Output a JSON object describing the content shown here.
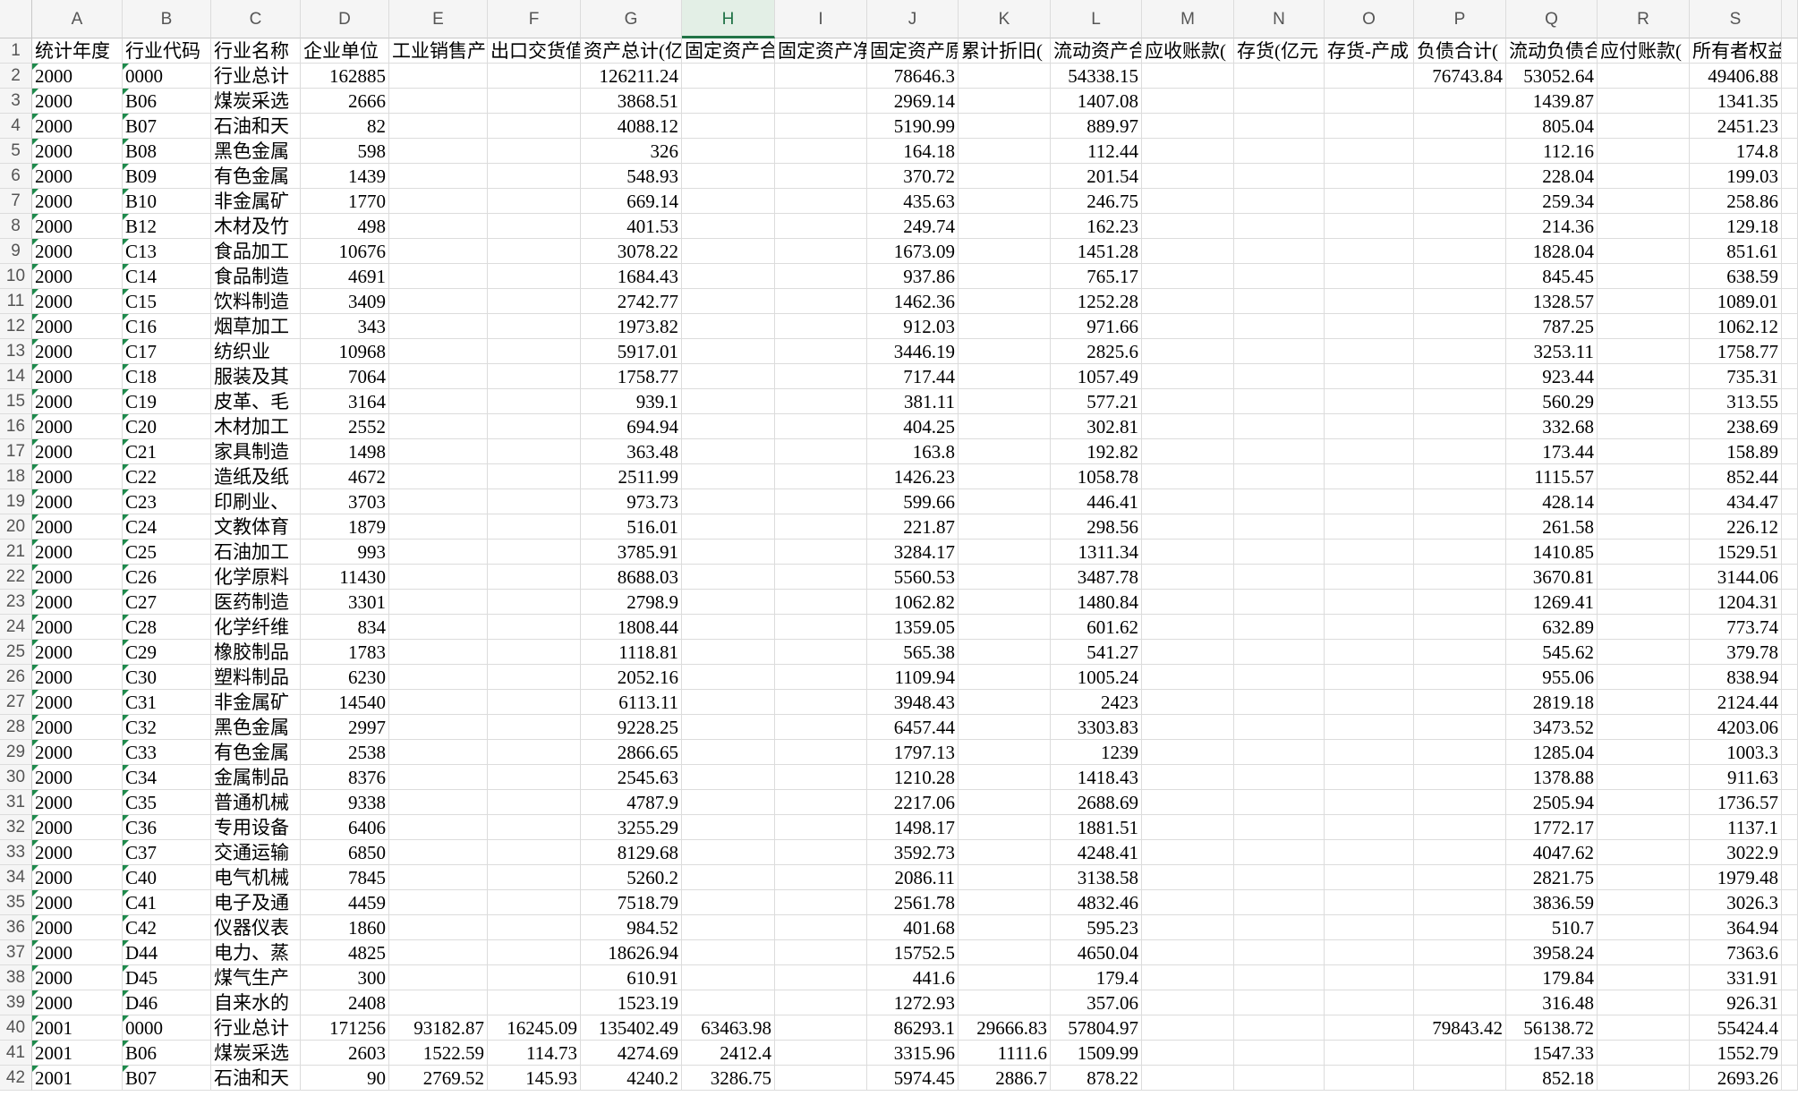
{
  "columns": [
    "A",
    "B",
    "C",
    "D",
    "E",
    "F",
    "G",
    "H",
    "I",
    "J",
    "K",
    "L",
    "M",
    "N",
    "O",
    "P",
    "Q",
    "R",
    "S"
  ],
  "row_numbers": [
    1,
    2,
    3,
    4,
    5,
    6,
    7,
    8,
    9,
    10,
    11,
    12,
    13,
    14,
    15,
    16,
    17,
    18,
    19,
    20,
    21,
    22,
    23,
    24,
    25,
    26,
    27,
    28,
    29,
    30,
    31,
    32,
    33,
    34,
    35,
    36,
    37,
    38,
    39,
    40,
    41,
    42
  ],
  "selected_column": "H",
  "table": {
    "rows": [
      [
        "统计年度",
        "行业代码",
        "行业名称",
        "企业单位",
        "工业销售产",
        "出口交货值",
        "资产总计(亿",
        "固定资产合",
        "固定资产净",
        "固定资产原",
        "累计折旧(",
        "流动资产合",
        "应收账款(",
        "存货(亿元",
        "存货-产成",
        "负债合计(",
        "流动负债合",
        "应付账款(",
        "所有者权益"
      ],
      [
        "2000",
        "0000",
        "行业总计",
        162885,
        null,
        null,
        126211.24,
        null,
        null,
        78646.3,
        null,
        54338.15,
        null,
        null,
        null,
        76743.84,
        53052.64,
        null,
        49406.88
      ],
      [
        "2000",
        "B06",
        "煤炭采选",
        2666,
        null,
        null,
        3868.51,
        null,
        null,
        2969.14,
        null,
        1407.08,
        null,
        null,
        null,
        null,
        1439.87,
        null,
        1341.35
      ],
      [
        "2000",
        "B07",
        "石油和天",
        82,
        null,
        null,
        4088.12,
        null,
        null,
        5190.99,
        null,
        889.97,
        null,
        null,
        null,
        null,
        805.04,
        null,
        2451.23
      ],
      [
        "2000",
        "B08",
        "黑色金属",
        598,
        null,
        null,
        326,
        null,
        null,
        164.18,
        null,
        112.44,
        null,
        null,
        null,
        null,
        112.16,
        null,
        174.8
      ],
      [
        "2000",
        "B09",
        "有色金属",
        1439,
        null,
        null,
        548.93,
        null,
        null,
        370.72,
        null,
        201.54,
        null,
        null,
        null,
        null,
        228.04,
        null,
        199.03
      ],
      [
        "2000",
        "B10",
        "非金属矿",
        1770,
        null,
        null,
        669.14,
        null,
        null,
        435.63,
        null,
        246.75,
        null,
        null,
        null,
        null,
        259.34,
        null,
        258.86
      ],
      [
        "2000",
        "B12",
        "木材及竹",
        498,
        null,
        null,
        401.53,
        null,
        null,
        249.74,
        null,
        162.23,
        null,
        null,
        null,
        null,
        214.36,
        null,
        129.18
      ],
      [
        "2000",
        "C13",
        "食品加工",
        10676,
        null,
        null,
        3078.22,
        null,
        null,
        1673.09,
        null,
        1451.28,
        null,
        null,
        null,
        null,
        1828.04,
        null,
        851.61
      ],
      [
        "2000",
        "C14",
        "食品制造",
        4691,
        null,
        null,
        1684.43,
        null,
        null,
        937.86,
        null,
        765.17,
        null,
        null,
        null,
        null,
        845.45,
        null,
        638.59
      ],
      [
        "2000",
        "C15",
        "饮料制造",
        3409,
        null,
        null,
        2742.77,
        null,
        null,
        1462.36,
        null,
        1252.28,
        null,
        null,
        null,
        null,
        1328.57,
        null,
        1089.01
      ],
      [
        "2000",
        "C16",
        "烟草加工",
        343,
        null,
        null,
        1973.82,
        null,
        null,
        912.03,
        null,
        971.66,
        null,
        null,
        null,
        null,
        787.25,
        null,
        1062.12
      ],
      [
        "2000",
        "C17",
        "纺织业",
        10968,
        null,
        null,
        5917.01,
        null,
        null,
        3446.19,
        null,
        2825.6,
        null,
        null,
        null,
        null,
        3253.11,
        null,
        1758.77
      ],
      [
        "2000",
        "C18",
        "服装及其",
        7064,
        null,
        null,
        1758.77,
        null,
        null,
        717.44,
        null,
        1057.49,
        null,
        null,
        null,
        null,
        923.44,
        null,
        735.31
      ],
      [
        "2000",
        "C19",
        "皮革、毛",
        3164,
        null,
        null,
        939.1,
        null,
        null,
        381.11,
        null,
        577.21,
        null,
        null,
        null,
        null,
        560.29,
        null,
        313.55
      ],
      [
        "2000",
        "C20",
        "木材加工",
        2552,
        null,
        null,
        694.94,
        null,
        null,
        404.25,
        null,
        302.81,
        null,
        null,
        null,
        null,
        332.68,
        null,
        238.69
      ],
      [
        "2000",
        "C21",
        "家具制造",
        1498,
        null,
        null,
        363.48,
        null,
        null,
        163.8,
        null,
        192.82,
        null,
        null,
        null,
        null,
        173.44,
        null,
        158.89
      ],
      [
        "2000",
        "C22",
        "造纸及纸",
        4672,
        null,
        null,
        2511.99,
        null,
        null,
        1426.23,
        null,
        1058.78,
        null,
        null,
        null,
        null,
        1115.57,
        null,
        852.44
      ],
      [
        "2000",
        "C23",
        "印刷业、",
        3703,
        null,
        null,
        973.73,
        null,
        null,
        599.66,
        null,
        446.41,
        null,
        null,
        null,
        null,
        428.14,
        null,
        434.47
      ],
      [
        "2000",
        "C24",
        "文教体育",
        1879,
        null,
        null,
        516.01,
        null,
        null,
        221.87,
        null,
        298.56,
        null,
        null,
        null,
        null,
        261.58,
        null,
        226.12
      ],
      [
        "2000",
        "C25",
        "石油加工",
        993,
        null,
        null,
        3785.91,
        null,
        null,
        3284.17,
        null,
        1311.34,
        null,
        null,
        null,
        null,
        1410.85,
        null,
        1529.51
      ],
      [
        "2000",
        "C26",
        "化学原料",
        11430,
        null,
        null,
        8688.03,
        null,
        null,
        5560.53,
        null,
        3487.78,
        null,
        null,
        null,
        null,
        3670.81,
        null,
        3144.06
      ],
      [
        "2000",
        "C27",
        "医药制造",
        3301,
        null,
        null,
        2798.9,
        null,
        null,
        1062.82,
        null,
        1480.84,
        null,
        null,
        null,
        null,
        1269.41,
        null,
        1204.31
      ],
      [
        "2000",
        "C28",
        "化学纤维",
        834,
        null,
        null,
        1808.44,
        null,
        null,
        1359.05,
        null,
        601.62,
        null,
        null,
        null,
        null,
        632.89,
        null,
        773.74
      ],
      [
        "2000",
        "C29",
        "橡胶制品",
        1783,
        null,
        null,
        1118.81,
        null,
        null,
        565.38,
        null,
        541.27,
        null,
        null,
        null,
        null,
        545.62,
        null,
        379.78
      ],
      [
        "2000",
        "C30",
        "塑料制品",
        6230,
        null,
        null,
        2052.16,
        null,
        null,
        1109.94,
        null,
        1005.24,
        null,
        null,
        null,
        null,
        955.06,
        null,
        838.94
      ],
      [
        "2000",
        "C31",
        "非金属矿",
        14540,
        null,
        null,
        6113.11,
        null,
        null,
        3948.43,
        null,
        2423,
        null,
        null,
        null,
        null,
        2819.18,
        null,
        2124.44
      ],
      [
        "2000",
        "C32",
        "黑色金属",
        2997,
        null,
        null,
        9228.25,
        null,
        null,
        6457.44,
        null,
        3303.83,
        null,
        null,
        null,
        null,
        3473.52,
        null,
        4203.06
      ],
      [
        "2000",
        "C33",
        "有色金属",
        2538,
        null,
        null,
        2866.65,
        null,
        null,
        1797.13,
        null,
        1239,
        null,
        null,
        null,
        null,
        1285.04,
        null,
        1003.3
      ],
      [
        "2000",
        "C34",
        "金属制品",
        8376,
        null,
        null,
        2545.63,
        null,
        null,
        1210.28,
        null,
        1418.43,
        null,
        null,
        null,
        null,
        1378.88,
        null,
        911.63
      ],
      [
        "2000",
        "C35",
        "普通机械",
        9338,
        null,
        null,
        4787.9,
        null,
        null,
        2217.06,
        null,
        2688.69,
        null,
        null,
        null,
        null,
        2505.94,
        null,
        1736.57
      ],
      [
        "2000",
        "C36",
        "专用设备",
        6406,
        null,
        null,
        3255.29,
        null,
        null,
        1498.17,
        null,
        1881.51,
        null,
        null,
        null,
        null,
        1772.17,
        null,
        1137.1
      ],
      [
        "2000",
        "C37",
        "交通运输",
        6850,
        null,
        null,
        8129.68,
        null,
        null,
        3592.73,
        null,
        4248.41,
        null,
        null,
        null,
        null,
        4047.62,
        null,
        3022.9
      ],
      [
        "2000",
        "C40",
        "电气机械",
        7845,
        null,
        null,
        5260.2,
        null,
        null,
        2086.11,
        null,
        3138.58,
        null,
        null,
        null,
        null,
        2821.75,
        null,
        1979.48
      ],
      [
        "2000",
        "C41",
        "电子及通",
        4459,
        null,
        null,
        7518.79,
        null,
        null,
        2561.78,
        null,
        4832.46,
        null,
        null,
        null,
        null,
        3836.59,
        null,
        3026.3
      ],
      [
        "2000",
        "C42",
        "仪器仪表",
        1860,
        null,
        null,
        984.52,
        null,
        null,
        401.68,
        null,
        595.23,
        null,
        null,
        null,
        null,
        510.7,
        null,
        364.94
      ],
      [
        "2000",
        "D44",
        "电力、蒸",
        4825,
        null,
        null,
        18626.94,
        null,
        null,
        15752.5,
        null,
        4650.04,
        null,
        null,
        null,
        null,
        3958.24,
        null,
        7363.6
      ],
      [
        "2000",
        "D45",
        "煤气生产",
        300,
        null,
        null,
        610.91,
        null,
        null,
        441.6,
        null,
        179.4,
        null,
        null,
        null,
        null,
        179.84,
        null,
        331.91
      ],
      [
        "2000",
        "D46",
        "自来水的",
        2408,
        null,
        null,
        1523.19,
        null,
        null,
        1272.93,
        null,
        357.06,
        null,
        null,
        null,
        null,
        316.48,
        null,
        926.31
      ],
      [
        "2001",
        "0000",
        "行业总计",
        171256,
        93182.87,
        16245.09,
        135402.49,
        63463.98,
        null,
        86293.1,
        29666.83,
        57804.97,
        null,
        null,
        null,
        79843.42,
        56138.72,
        null,
        55424.4
      ],
      [
        "2001",
        "B06",
        "煤炭采选",
        2603,
        1522.59,
        114.73,
        4274.69,
        2412.4,
        null,
        3315.96,
        1111.6,
        1509.99,
        null,
        null,
        null,
        null,
        1547.33,
        null,
        1552.79
      ],
      [
        "2001",
        "B07",
        "石油和天",
        90,
        2769.52,
        145.93,
        4240.2,
        3286.75,
        null,
        5974.45,
        2886.7,
        878.22,
        null,
        null,
        null,
        null,
        852.18,
        null,
        2693.26
      ]
    ]
  }
}
